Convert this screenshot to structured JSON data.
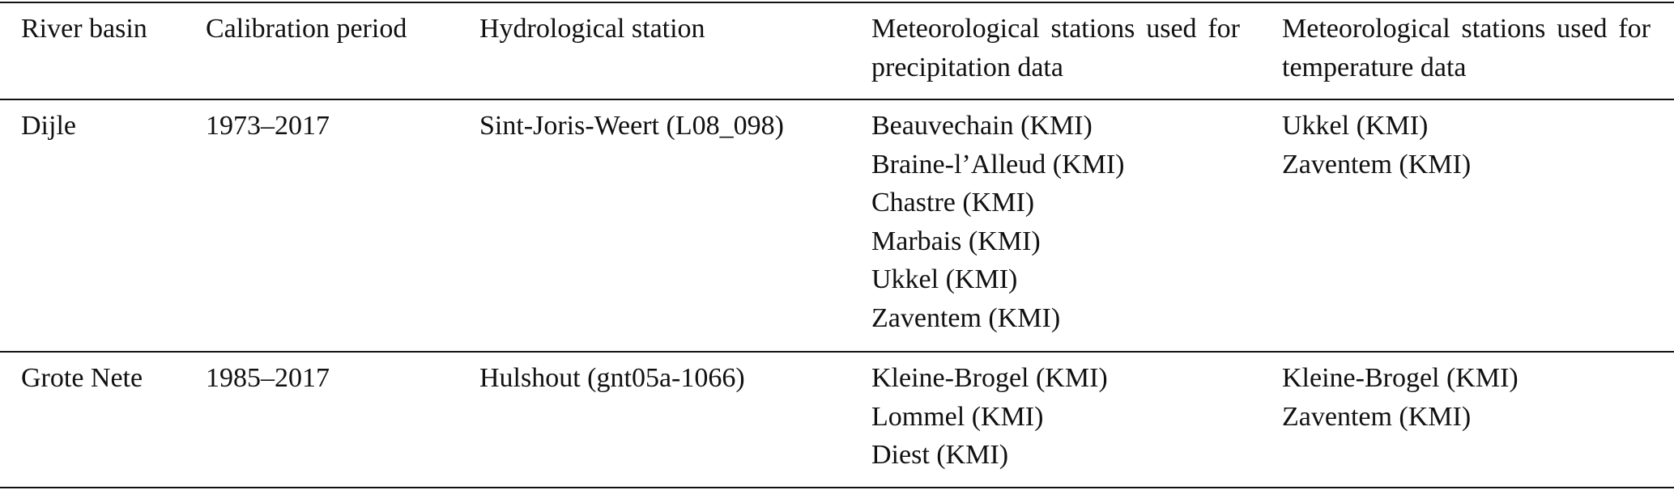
{
  "table": {
    "header": [
      "River basin",
      "Calibration period",
      "Hydrological station",
      "Meteorological stations used for precipitation data",
      "Meteorological stations used for temperature data"
    ],
    "rows": [
      [
        "Dijle",
        "1973–2017",
        "Sint-Joris-Weert (L08_098)",
        [
          "Beauvechain (KMI)",
          "Braine-l’Alleud (KMI)",
          "Chastre (KMI)",
          "Marbais (KMI)",
          "Ukkel (KMI)",
          "Zaventem (KMI)"
        ],
        [
          "Ukkel (KMI)",
          "Zaventem (KMI)"
        ]
      ],
      [
        "Grote Nete",
        "1985–2017",
        "Hulshout (gnt05a-1066)",
        [
          "Kleine-Brogel (KMI)",
          "Lommel (KMI)",
          "Diest (KMI)"
        ],
        [
          "Kleine-Brogel (KMI)",
          "Zaventem (KMI)"
        ]
      ]
    ]
  }
}
